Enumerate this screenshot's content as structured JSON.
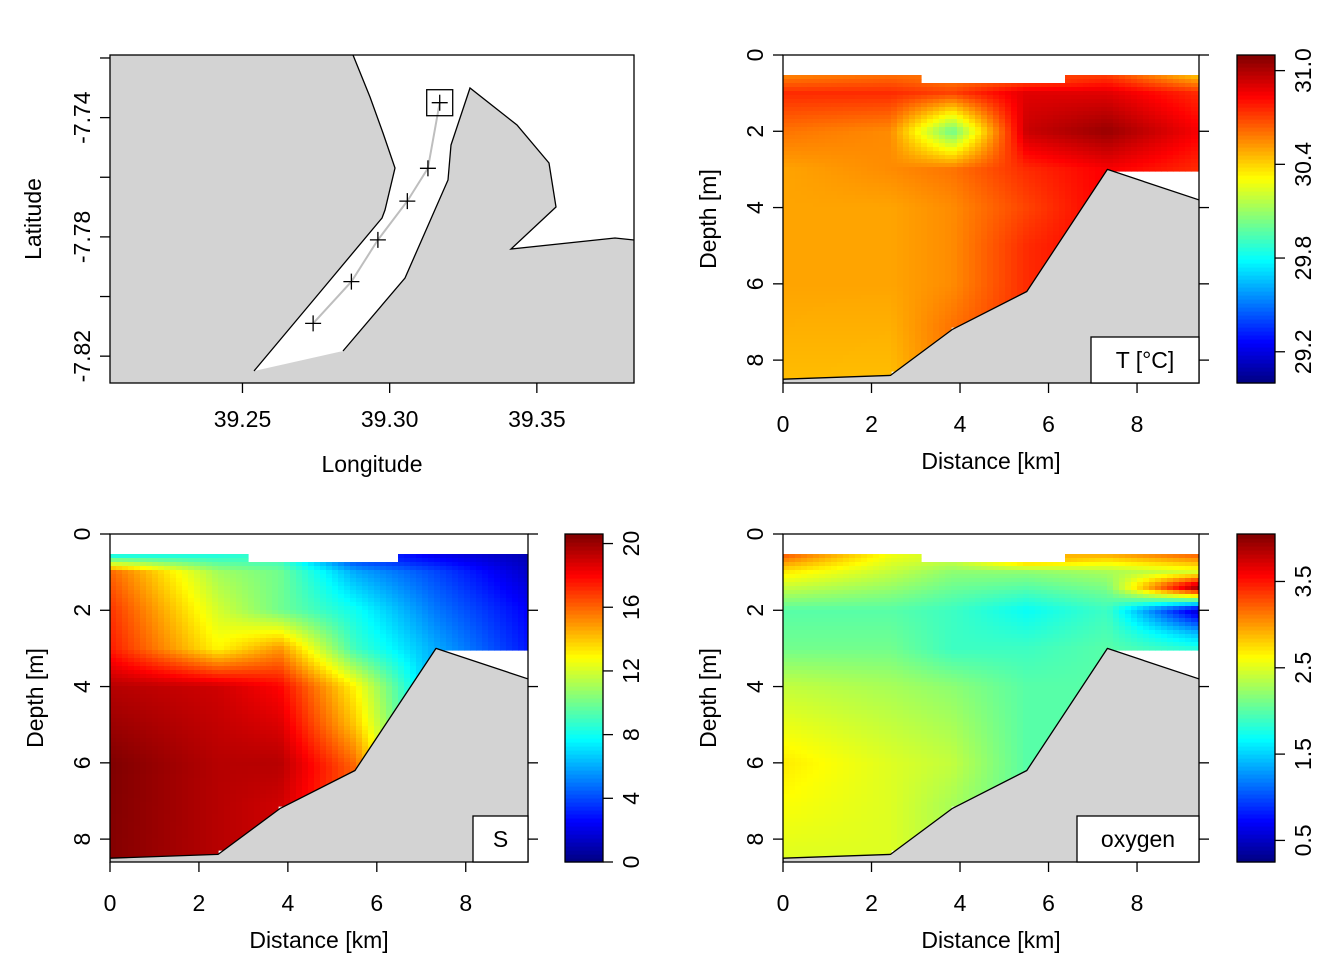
{
  "chart_data": [
    {
      "type": "map",
      "xlabel": "Longitude",
      "ylabel": "Latitude",
      "xticks": [
        "39.25",
        "39.30",
        "39.35"
      ],
      "yticks": [
        "-7.74",
        "-7.78",
        "-7.82"
      ],
      "xlim": [
        39.205,
        39.383
      ],
      "ylim": [
        -7.829,
        -7.719
      ],
      "stations": [
        {
          "lon": 39.317,
          "lat": -7.735
        },
        {
          "lon": 39.313,
          "lat": -7.757
        },
        {
          "lon": 39.306,
          "lat": -7.768
        },
        {
          "lon": 39.296,
          "lat": -7.781
        },
        {
          "lon": 39.287,
          "lat": -7.795
        },
        {
          "lon": 39.274,
          "lat": -7.809
        }
      ],
      "start_marker": "square"
    },
    {
      "type": "heatmap",
      "variable": "temperature",
      "legend_label": "T [°C]",
      "xlabel": "Distance [km]",
      "ylabel": "Depth [m]",
      "xticks": [
        "0",
        "2",
        "4",
        "6",
        "8"
      ],
      "yticks": [
        "0",
        "2",
        "4",
        "6",
        "8"
      ],
      "colorbar_ticks": [
        "29.2",
        "29.8",
        "30.4",
        "31.0"
      ],
      "colorbar_range": [
        29.0,
        31.1
      ],
      "colormap": "jet"
    },
    {
      "type": "heatmap",
      "variable": "salinity",
      "legend_label": "S",
      "xlabel": "Distance [km]",
      "ylabel": "Depth [m]",
      "xticks": [
        "0",
        "2",
        "4",
        "6",
        "8"
      ],
      "yticks": [
        "0",
        "2",
        "4",
        "6",
        "8"
      ],
      "colorbar_ticks": [
        "0",
        "4",
        "8",
        "12",
        "16",
        "20"
      ],
      "colorbar_range": [
        0,
        20.6
      ],
      "colormap": "jet"
    },
    {
      "type": "heatmap",
      "variable": "oxygen",
      "legend_label": "oxygen",
      "xlabel": "Distance [km]",
      "ylabel": "Depth [m]",
      "xticks": [
        "0",
        "2",
        "4",
        "6",
        "8"
      ],
      "yticks": [
        "0",
        "2",
        "4",
        "6",
        "8"
      ],
      "colorbar_ticks": [
        "0.5",
        "1.5",
        "2.5",
        "3.5"
      ],
      "colorbar_range": [
        0.25,
        4.05
      ],
      "colormap": "jet"
    }
  ],
  "section": {
    "xlim": [
      0,
      9.4
    ],
    "ylim": [
      8.6,
      0
    ],
    "station_distance_km": [
      0,
      2.43,
      3.82,
      5.51,
      7.33,
      9.4
    ],
    "bottom_depth_m": [
      8.5,
      8.4,
      7.2,
      6.2,
      3.0,
      3.8
    ],
    "profiles": {
      "temperature": [
        {
          "depth": [
            0.5,
            1,
            2,
            3,
            4,
            6,
            8.5
          ],
          "value": [
            30.55,
            30.75,
            30.6,
            30.5,
            30.5,
            30.5,
            30.45
          ]
        },
        {
          "depth": [
            0.5,
            1,
            2,
            3,
            4,
            6,
            8.3
          ],
          "value": [
            30.6,
            30.75,
            30.55,
            30.55,
            30.5,
            30.5,
            30.45
          ]
        },
        {
          "depth": [
            0.7,
            1,
            2,
            3,
            4,
            6,
            7.1
          ],
          "value": [
            30.6,
            30.7,
            30.0,
            30.6,
            30.55,
            30.55,
            30.6
          ]
        },
        {
          "depth": [
            0.7,
            1,
            2,
            3,
            4,
            5,
            6.1
          ],
          "value": [
            30.7,
            30.9,
            30.95,
            30.75,
            30.7,
            30.75,
            30.75
          ]
        },
        {
          "depth": [
            0.5,
            1,
            2,
            3
          ],
          "value": [
            30.7,
            30.9,
            31.05,
            30.85
          ]
        },
        {
          "depth": [
            0.5,
            1,
            2,
            3
          ],
          "value": [
            30.4,
            30.75,
            30.85,
            30.75
          ]
        }
      ],
      "salinity": [
        {
          "depth": [
            0.5,
            1,
            2,
            3,
            4,
            6,
            8.5
          ],
          "value": [
            7,
            16,
            17,
            17.5,
            19.5,
            20.6,
            20.5
          ]
        },
        {
          "depth": [
            0.5,
            1,
            2,
            3,
            4,
            6,
            8.3
          ],
          "value": [
            8,
            11,
            12,
            13,
            19,
            19.5,
            19.5
          ]
        },
        {
          "depth": [
            0.7,
            1,
            2,
            3,
            4,
            6,
            7.1
          ],
          "value": [
            9,
            10,
            10,
            15,
            18,
            19.5,
            19
          ]
        },
        {
          "depth": [
            0.7,
            1,
            2,
            3,
            4,
            5,
            6.1
          ],
          "value": [
            4,
            6,
            8,
            9,
            13,
            14,
            16
          ]
        },
        {
          "depth": [
            0.5,
            1,
            2,
            3
          ],
          "value": [
            2,
            4,
            5,
            6
          ]
        },
        {
          "depth": [
            0.5,
            1,
            2,
            3
          ],
          "value": [
            1,
            1.5,
            2.5,
            3
          ]
        }
      ],
      "oxygen": [
        {
          "depth": [
            0.5,
            1,
            2,
            3,
            4,
            6,
            8.5
          ],
          "value": [
            3.3,
            2.7,
            2.0,
            2.1,
            2.4,
            2.7,
            2.5
          ]
        },
        {
          "depth": [
            0.5,
            1,
            2,
            3,
            4,
            6,
            8.3
          ],
          "value": [
            2.6,
            2.4,
            2.0,
            2.1,
            2.3,
            2.5,
            2.5
          ]
        },
        {
          "depth": [
            0.7,
            1,
            2,
            3,
            4,
            6,
            7.1
          ],
          "value": [
            2.4,
            2.2,
            1.9,
            1.9,
            2.2,
            2.4,
            2.3
          ]
        },
        {
          "depth": [
            0.7,
            1,
            2,
            3,
            4,
            5,
            6.1
          ],
          "value": [
            2.9,
            2.2,
            1.7,
            1.9,
            2.0,
            2.0,
            2.0
          ]
        },
        {
          "depth": [
            0.5,
            1,
            2,
            3
          ],
          "value": [
            3.0,
            2.3,
            1.9,
            2.0
          ]
        },
        {
          "depth": [
            0.5,
            1,
            1.4,
            2,
            2.6,
            3
          ],
          "value": [
            3.3,
            2.5,
            4.0,
            0.5,
            1.4,
            1.8
          ]
        }
      ]
    }
  }
}
